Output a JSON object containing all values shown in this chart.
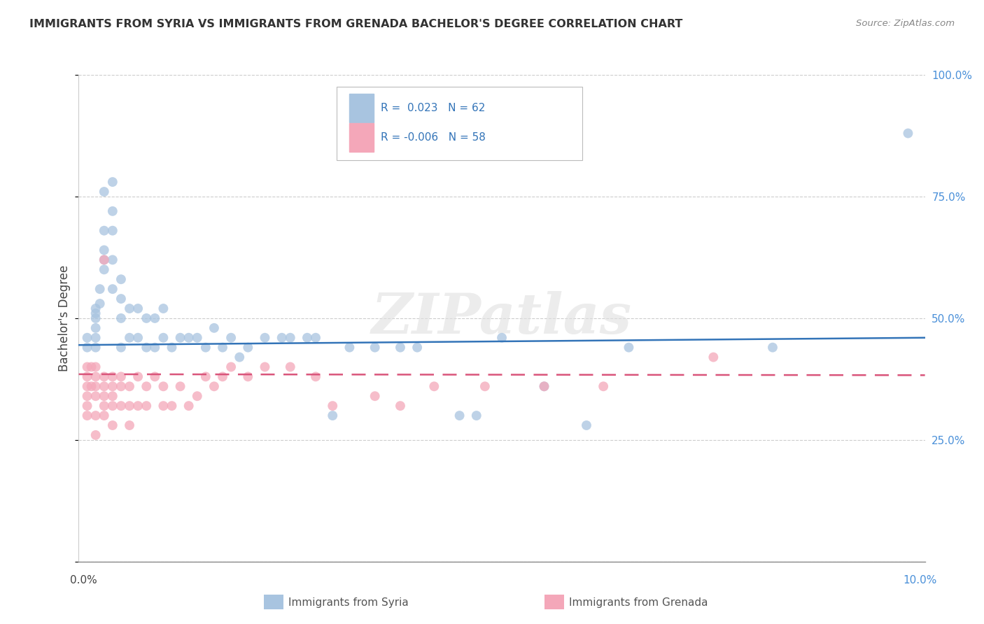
{
  "title": "IMMIGRANTS FROM SYRIA VS IMMIGRANTS FROM GRENADA BACHELOR'S DEGREE CORRELATION CHART",
  "source": "Source: ZipAtlas.com",
  "ylabel": "Bachelor's Degree",
  "yticks": [
    0.0,
    0.25,
    0.5,
    0.75,
    1.0
  ],
  "ytick_labels_right": [
    "",
    "25.0%",
    "50.0%",
    "75.0%",
    "100.0%"
  ],
  "xtick_positions": [
    0.0,
    0.025,
    0.05,
    0.075,
    0.1
  ],
  "xlim": [
    0.0,
    0.1
  ],
  "ylim": [
    0.0,
    1.0
  ],
  "syria_color": "#a8c4e0",
  "grenada_color": "#f4a7b9",
  "syria_line_color": "#3374b8",
  "grenada_line_color": "#d9547a",
  "background_color": "#ffffff",
  "watermark": "ZIPatlas",
  "grid_color": "#cccccc",
  "syria_x": [
    0.001,
    0.001,
    0.002,
    0.002,
    0.002,
    0.002,
    0.002,
    0.002,
    0.0025,
    0.0025,
    0.003,
    0.003,
    0.003,
    0.003,
    0.003,
    0.004,
    0.004,
    0.004,
    0.004,
    0.004,
    0.005,
    0.005,
    0.005,
    0.005,
    0.006,
    0.006,
    0.007,
    0.007,
    0.008,
    0.008,
    0.009,
    0.009,
    0.01,
    0.01,
    0.011,
    0.012,
    0.013,
    0.014,
    0.015,
    0.016,
    0.017,
    0.018,
    0.019,
    0.02,
    0.022,
    0.024,
    0.025,
    0.027,
    0.028,
    0.03,
    0.032,
    0.035,
    0.038,
    0.04,
    0.045,
    0.047,
    0.05,
    0.055,
    0.06,
    0.065,
    0.082,
    0.098
  ],
  "syria_y": [
    0.44,
    0.46,
    0.44,
    0.46,
    0.48,
    0.5,
    0.51,
    0.52,
    0.53,
    0.56,
    0.6,
    0.62,
    0.64,
    0.68,
    0.76,
    0.56,
    0.62,
    0.68,
    0.72,
    0.78,
    0.44,
    0.5,
    0.54,
    0.58,
    0.46,
    0.52,
    0.46,
    0.52,
    0.44,
    0.5,
    0.44,
    0.5,
    0.46,
    0.52,
    0.44,
    0.46,
    0.46,
    0.46,
    0.44,
    0.48,
    0.44,
    0.46,
    0.42,
    0.44,
    0.46,
    0.46,
    0.46,
    0.46,
    0.46,
    0.3,
    0.44,
    0.44,
    0.44,
    0.44,
    0.3,
    0.3,
    0.46,
    0.36,
    0.28,
    0.44,
    0.44,
    0.88
  ],
  "grenada_x": [
    0.001,
    0.001,
    0.001,
    0.001,
    0.001,
    0.001,
    0.0015,
    0.0015,
    0.002,
    0.002,
    0.002,
    0.002,
    0.002,
    0.002,
    0.003,
    0.003,
    0.003,
    0.003,
    0.003,
    0.003,
    0.004,
    0.004,
    0.004,
    0.004,
    0.004,
    0.005,
    0.005,
    0.005,
    0.006,
    0.006,
    0.006,
    0.007,
    0.007,
    0.008,
    0.008,
    0.009,
    0.01,
    0.01,
    0.011,
    0.012,
    0.013,
    0.014,
    0.015,
    0.016,
    0.017,
    0.018,
    0.02,
    0.022,
    0.025,
    0.028,
    0.03,
    0.035,
    0.038,
    0.042,
    0.048,
    0.055,
    0.062,
    0.075
  ],
  "grenada_y": [
    0.3,
    0.32,
    0.34,
    0.36,
    0.38,
    0.4,
    0.36,
    0.4,
    0.26,
    0.3,
    0.34,
    0.36,
    0.38,
    0.4,
    0.3,
    0.32,
    0.34,
    0.36,
    0.38,
    0.62,
    0.28,
    0.32,
    0.34,
    0.36,
    0.38,
    0.32,
    0.36,
    0.38,
    0.28,
    0.32,
    0.36,
    0.32,
    0.38,
    0.32,
    0.36,
    0.38,
    0.32,
    0.36,
    0.32,
    0.36,
    0.32,
    0.34,
    0.38,
    0.36,
    0.38,
    0.4,
    0.38,
    0.4,
    0.4,
    0.38,
    0.32,
    0.34,
    0.32,
    0.36,
    0.36,
    0.36,
    0.36,
    0.42
  ]
}
